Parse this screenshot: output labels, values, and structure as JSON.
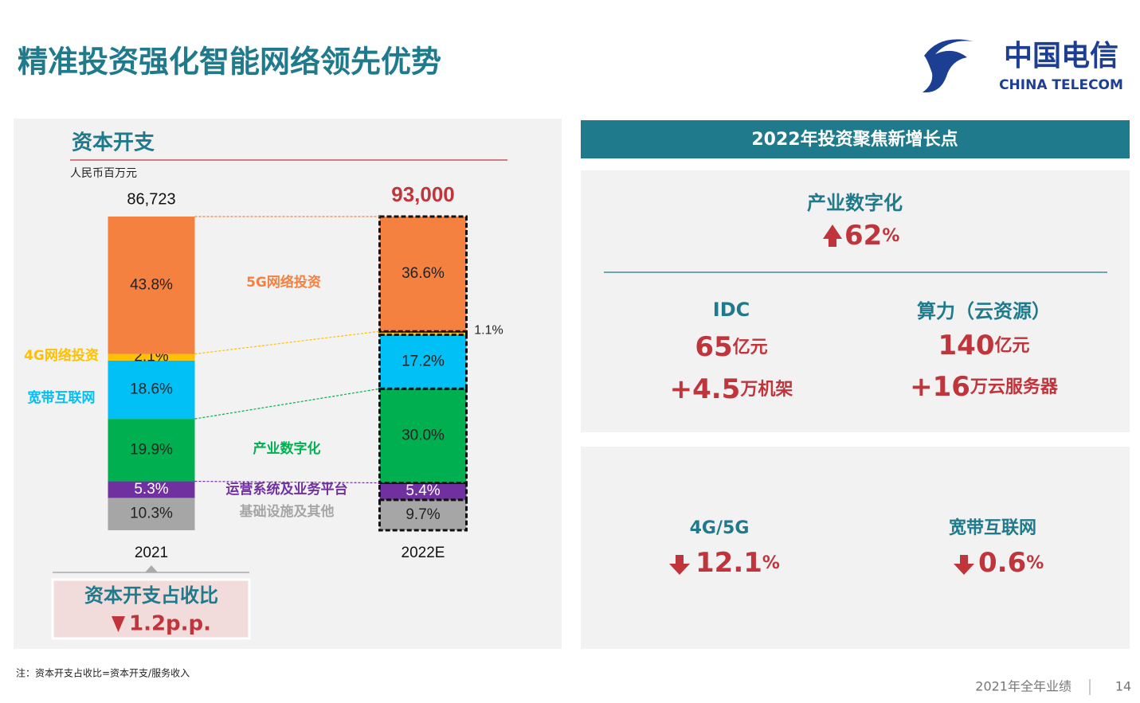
{
  "header": {
    "title": "精准投资强化智能网络领先优势",
    "logo_cn": "中国电信",
    "logo_en": "CHINA TELECOM"
  },
  "chart_data": {
    "type": "stacked_bar",
    "title": "资本开支",
    "subtitle": "人民币百万元",
    "categories": [
      "2021",
      "2022E"
    ],
    "series": [
      {
        "name": "基础设施及其他",
        "color": "#a6a6a6",
        "values": [
          10.3,
          9.7
        ],
        "value_labels": [
          "10.3%",
          "9.7%"
        ]
      },
      {
        "name": "运营系统及业务平台",
        "color": "#7030a0",
        "values": [
          5.3,
          5.4
        ],
        "value_labels": [
          "5.3%",
          "5.4%"
        ]
      },
      {
        "name": "产业数字化",
        "color": "#00b050",
        "values": [
          19.9,
          30.0
        ],
        "value_labels": [
          "19.9%",
          "30.0%"
        ]
      },
      {
        "name": "宽带互联网",
        "color": "#00c0f5",
        "values": [
          18.6,
          17.2
        ],
        "value_labels": [
          "18.6%",
          "17.2%"
        ]
      },
      {
        "name": "4G网络投资",
        "color": "#ffc000",
        "values": [
          2.1,
          1.1
        ],
        "value_labels": [
          "2.1%",
          "1.1%"
        ]
      },
      {
        "name": "5G网络投资",
        "color": "#f58140",
        "values": [
          43.8,
          36.6
        ],
        "value_labels": [
          "43.8%",
          "36.6%"
        ]
      }
    ],
    "totals": {
      "values": [
        86723,
        93000
      ],
      "value_labels": [
        "86,723",
        "93,000"
      ]
    }
  },
  "callout": {
    "title": "资本开支占收比",
    "value": "1.2p.p."
  },
  "focus": {
    "title": "2022年投资聚焦新增长点",
    "items": [
      {
        "label": "产业数字化",
        "value": "62",
        "unit": "%"
      },
      {
        "label": "IDC",
        "lines": [
          {
            "value": "65",
            "unit": "亿元"
          },
          {
            "value": "+4.5",
            "unit": "万机架"
          }
        ]
      },
      {
        "label": "算力（云资源）",
        "lines": [
          {
            "value": "140",
            "unit": "亿元"
          },
          {
            "value": "+16",
            "unit": "万云服务器"
          }
        ]
      }
    ]
  },
  "declines": [
    {
      "label": "4G/5G",
      "value": "12.1",
      "unit": "%"
    },
    {
      "label": "宽带互联网",
      "value": "0.6",
      "unit": "%"
    }
  ],
  "note": "注：资本开支占收比=资本开支/服务收入",
  "footer": {
    "report": "2021年全年业绩",
    "page": "14"
  }
}
